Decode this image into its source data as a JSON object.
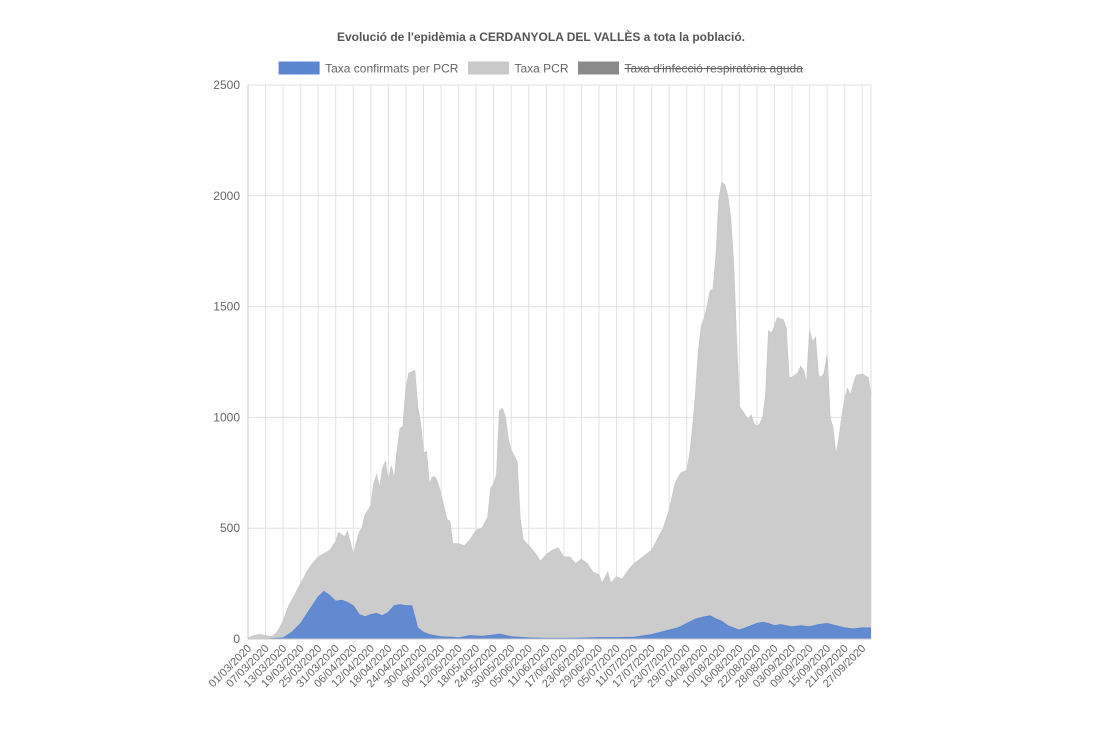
{
  "chart_data": {
    "type": "area",
    "title": "Evolució de l'epidèmia a CERDANYOLA DEL VALLÈS a tota la població.",
    "xlabel": "",
    "ylabel": "",
    "ylim": [
      0,
      2500
    ],
    "y_ticks": [
      0,
      500,
      1000,
      1500,
      2000,
      2500
    ],
    "grid": true,
    "legend_position": "top",
    "x_start": "01/03/2020",
    "x_end": "30/09/2020",
    "x_tick_labels": [
      "01/03/2020",
      "07/03/2020",
      "13/03/2020",
      "19/03/2020",
      "25/03/2020",
      "31/03/2020",
      "06/04/2020",
      "12/04/2020",
      "18/04/2020",
      "24/04/2020",
      "30/04/2020",
      "06/05/2020",
      "12/05/2020",
      "18/05/2020",
      "24/05/2020",
      "30/05/2020",
      "05/06/2020",
      "11/06/2020",
      "17/06/2020",
      "23/06/2020",
      "29/06/2020",
      "05/07/2020",
      "11/07/2020",
      "17/07/2020",
      "23/07/2020",
      "29/07/2020",
      "04/08/2020",
      "10/08/2020",
      "16/08/2020",
      "22/08/2020",
      "28/08/2020",
      "03/09/2020",
      "09/09/2020",
      "15/09/2020",
      "21/09/2020",
      "27/09/2020"
    ],
    "series": [
      {
        "name": "Taxa confirmats per PCR",
        "color": "#5b86d0",
        "hidden": false,
        "points": [
          [
            "01/03/2020",
            0
          ],
          [
            "07/03/2020",
            0
          ],
          [
            "13/03/2020",
            5
          ],
          [
            "16/03/2020",
            30
          ],
          [
            "19/03/2020",
            70
          ],
          [
            "22/03/2020",
            130
          ],
          [
            "25/03/2020",
            190
          ],
          [
            "27/03/2020",
            215
          ],
          [
            "29/03/2020",
            195
          ],
          [
            "31/03/2020",
            170
          ],
          [
            "02/04/2020",
            175
          ],
          [
            "04/04/2020",
            165
          ],
          [
            "06/04/2020",
            150
          ],
          [
            "08/04/2020",
            110
          ],
          [
            "10/04/2020",
            100
          ],
          [
            "12/04/2020",
            110
          ],
          [
            "14/04/2020",
            115
          ],
          [
            "16/04/2020",
            105
          ],
          [
            "18/04/2020",
            120
          ],
          [
            "20/04/2020",
            150
          ],
          [
            "22/04/2020",
            155
          ],
          [
            "24/04/2020",
            150
          ],
          [
            "26/04/2020",
            150
          ],
          [
            "28/04/2020",
            50
          ],
          [
            "30/04/2020",
            30
          ],
          [
            "02/05/2020",
            20
          ],
          [
            "04/05/2020",
            15
          ],
          [
            "06/05/2020",
            10
          ],
          [
            "10/05/2020",
            8
          ],
          [
            "12/05/2020",
            5
          ],
          [
            "16/05/2020",
            15
          ],
          [
            "20/05/2020",
            12
          ],
          [
            "24/05/2020",
            18
          ],
          [
            "26/05/2020",
            22
          ],
          [
            "30/05/2020",
            10
          ],
          [
            "05/06/2020",
            5
          ],
          [
            "11/06/2020",
            3
          ],
          [
            "17/06/2020",
            3
          ],
          [
            "23/06/2020",
            4
          ],
          [
            "29/06/2020",
            6
          ],
          [
            "05/07/2020",
            6
          ],
          [
            "11/07/2020",
            8
          ],
          [
            "17/07/2020",
            20
          ],
          [
            "20/07/2020",
            30
          ],
          [
            "23/07/2020",
            40
          ],
          [
            "26/07/2020",
            50
          ],
          [
            "29/07/2020",
            70
          ],
          [
            "01/08/2020",
            90
          ],
          [
            "04/08/2020",
            100
          ],
          [
            "06/08/2020",
            105
          ],
          [
            "08/08/2020",
            90
          ],
          [
            "10/08/2020",
            80
          ],
          [
            "12/08/2020",
            60
          ],
          [
            "14/08/2020",
            50
          ],
          [
            "16/08/2020",
            40
          ],
          [
            "18/08/2020",
            50
          ],
          [
            "20/08/2020",
            60
          ],
          [
            "22/08/2020",
            70
          ],
          [
            "24/08/2020",
            75
          ],
          [
            "26/08/2020",
            70
          ],
          [
            "28/08/2020",
            60
          ],
          [
            "30/08/2020",
            65
          ],
          [
            "01/09/2020",
            60
          ],
          [
            "03/09/2020",
            55
          ],
          [
            "06/09/2020",
            60
          ],
          [
            "09/09/2020",
            55
          ],
          [
            "12/09/2020",
            65
          ],
          [
            "15/09/2020",
            70
          ],
          [
            "18/09/2020",
            60
          ],
          [
            "21/09/2020",
            50
          ],
          [
            "24/09/2020",
            45
          ],
          [
            "27/09/2020",
            50
          ],
          [
            "30/09/2020",
            50
          ]
        ]
      },
      {
        "name": "Taxa PCR",
        "color": "#c9c9c9",
        "hidden": false,
        "points": [
          [
            "01/03/2020",
            5
          ],
          [
            "03/03/2020",
            15
          ],
          [
            "05/03/2020",
            20
          ],
          [
            "07/03/2020",
            15
          ],
          [
            "09/03/2020",
            10
          ],
          [
            "11/03/2020",
            30
          ],
          [
            "13/03/2020",
            80
          ],
          [
            "15/03/2020",
            150
          ],
          [
            "17/03/2020",
            200
          ],
          [
            "19/03/2020",
            250
          ],
          [
            "21/03/2020",
            300
          ],
          [
            "23/03/2020",
            340
          ],
          [
            "25/03/2020",
            370
          ],
          [
            "27/03/2020",
            385
          ],
          [
            "29/03/2020",
            400
          ],
          [
            "31/03/2020",
            440
          ],
          [
            "01/04/2020",
            480
          ],
          [
            "03/04/2020",
            460
          ],
          [
            "04/04/2020",
            485
          ],
          [
            "06/04/2020",
            380
          ],
          [
            "08/04/2020",
            480
          ],
          [
            "09/04/2020",
            500
          ],
          [
            "10/04/2020",
            560
          ],
          [
            "12/04/2020",
            600
          ],
          [
            "13/04/2020",
            700
          ],
          [
            "14/04/2020",
            740
          ],
          [
            "15/04/2020",
            680
          ],
          [
            "16/04/2020",
            770
          ],
          [
            "17/04/2020",
            800
          ],
          [
            "18/04/2020",
            710
          ],
          [
            "19/04/2020",
            780
          ],
          [
            "20/04/2020",
            720
          ],
          [
            "21/04/2020",
            850
          ],
          [
            "22/04/2020",
            950
          ],
          [
            "23/04/2020",
            960
          ],
          [
            "24/04/2020",
            1130
          ],
          [
            "25/04/2020",
            1200
          ],
          [
            "27/04/2020",
            1210
          ],
          [
            "28/04/2020",
            1050
          ],
          [
            "29/04/2020",
            970
          ],
          [
            "30/04/2020",
            840
          ],
          [
            "01/05/2020",
            845
          ],
          [
            "02/05/2020",
            700
          ],
          [
            "03/05/2020",
            730
          ],
          [
            "04/05/2020",
            730
          ],
          [
            "05/05/2020",
            700
          ],
          [
            "06/05/2020",
            650
          ],
          [
            "08/05/2020",
            540
          ],
          [
            "09/05/2020",
            530
          ],
          [
            "10/05/2020",
            430
          ],
          [
            "12/05/2020",
            430
          ],
          [
            "14/05/2020",
            420
          ],
          [
            "16/05/2020",
            450
          ],
          [
            "18/05/2020",
            490
          ],
          [
            "20/05/2020",
            500
          ],
          [
            "22/05/2020",
            550
          ],
          [
            "23/05/2020",
            680
          ],
          [
            "24/05/2020",
            700
          ],
          [
            "25/05/2020",
            740
          ],
          [
            "26/05/2020",
            1030
          ],
          [
            "27/05/2020",
            1040
          ],
          [
            "28/05/2020",
            1000
          ],
          [
            "29/05/2020",
            900
          ],
          [
            "30/05/2020",
            850
          ],
          [
            "01/06/2020",
            800
          ],
          [
            "02/06/2020",
            550
          ],
          [
            "03/06/2020",
            450
          ],
          [
            "05/06/2020",
            420
          ],
          [
            "07/06/2020",
            390
          ],
          [
            "09/06/2020",
            350
          ],
          [
            "11/06/2020",
            380
          ],
          [
            "13/06/2020",
            400
          ],
          [
            "15/06/2020",
            410
          ],
          [
            "17/06/2020",
            370
          ],
          [
            "19/06/2020",
            370
          ],
          [
            "21/06/2020",
            340
          ],
          [
            "23/06/2020",
            360
          ],
          [
            "25/06/2020",
            340
          ],
          [
            "27/06/2020",
            300
          ],
          [
            "29/06/2020",
            290
          ],
          [
            "30/06/2020",
            250
          ],
          [
            "02/07/2020",
            300
          ],
          [
            "03/07/2020",
            250
          ],
          [
            "05/07/2020",
            280
          ],
          [
            "07/07/2020",
            270
          ],
          [
            "09/07/2020",
            310
          ],
          [
            "11/07/2020",
            340
          ],
          [
            "13/07/2020",
            360
          ],
          [
            "15/07/2020",
            380
          ],
          [
            "17/07/2020",
            400
          ],
          [
            "19/07/2020",
            450
          ],
          [
            "21/07/2020",
            500
          ],
          [
            "23/07/2020",
            580
          ],
          [
            "25/07/2020",
            700
          ],
          [
            "27/07/2020",
            750
          ],
          [
            "29/07/2020",
            760
          ],
          [
            "30/07/2020",
            830
          ],
          [
            "31/07/2020",
            950
          ],
          [
            "01/08/2020",
            1100
          ],
          [
            "02/08/2020",
            1300
          ],
          [
            "03/08/2020",
            1410
          ],
          [
            "04/08/2020",
            1450
          ],
          [
            "05/08/2020",
            1500
          ],
          [
            "06/08/2020",
            1570
          ],
          [
            "07/08/2020",
            1580
          ],
          [
            "08/08/2020",
            1720
          ],
          [
            "09/08/2020",
            1980
          ],
          [
            "10/08/2020",
            2060
          ],
          [
            "11/08/2020",
            2050
          ],
          [
            "12/08/2020",
            2000
          ],
          [
            "13/08/2020",
            1900
          ],
          [
            "14/08/2020",
            1700
          ],
          [
            "15/08/2020",
            1350
          ],
          [
            "16/08/2020",
            1050
          ],
          [
            "17/08/2020",
            1030
          ],
          [
            "18/08/2020",
            1010
          ],
          [
            "19/08/2020",
            990
          ],
          [
            "20/08/2020",
            1010
          ],
          [
            "21/08/2020",
            970
          ],
          [
            "22/08/2020",
            960
          ],
          [
            "23/08/2020",
            970
          ],
          [
            "24/08/2020",
            1000
          ],
          [
            "25/08/2020",
            1100
          ],
          [
            "26/08/2020",
            1390
          ],
          [
            "27/08/2020",
            1380
          ],
          [
            "28/08/2020",
            1410
          ],
          [
            "29/08/2020",
            1450
          ],
          [
            "31/08/2020",
            1440
          ],
          [
            "01/09/2020",
            1400
          ],
          [
            "02/09/2020",
            1180
          ],
          [
            "03/09/2020",
            1180
          ],
          [
            "04/09/2020",
            1190
          ],
          [
            "05/09/2020",
            1200
          ],
          [
            "06/09/2020",
            1230
          ],
          [
            "07/09/2020",
            1210
          ],
          [
            "08/09/2020",
            1150
          ],
          [
            "09/09/2020",
            1390
          ],
          [
            "10/09/2020",
            1340
          ],
          [
            "11/09/2020",
            1360
          ],
          [
            "12/09/2020",
            1190
          ],
          [
            "13/09/2020",
            1180
          ],
          [
            "14/09/2020",
            1200
          ],
          [
            "15/09/2020",
            1280
          ],
          [
            "16/09/2020",
            1000
          ],
          [
            "17/09/2020",
            950
          ],
          [
            "18/09/2020",
            830
          ],
          [
            "19/09/2020",
            900
          ],
          [
            "20/09/2020",
            1000
          ],
          [
            "21/09/2020",
            1080
          ],
          [
            "22/09/2020",
            1130
          ],
          [
            "23/09/2020",
            1100
          ],
          [
            "24/09/2020",
            1150
          ],
          [
            "25/09/2020",
            1190
          ],
          [
            "27/09/2020",
            1195
          ],
          [
            "29/09/2020",
            1180
          ],
          [
            "30/09/2020",
            1100
          ]
        ]
      },
      {
        "name": "Taxa d'infecció respiratòria aguda",
        "color": "#8a8a8a",
        "hidden": true,
        "points": []
      }
    ]
  }
}
